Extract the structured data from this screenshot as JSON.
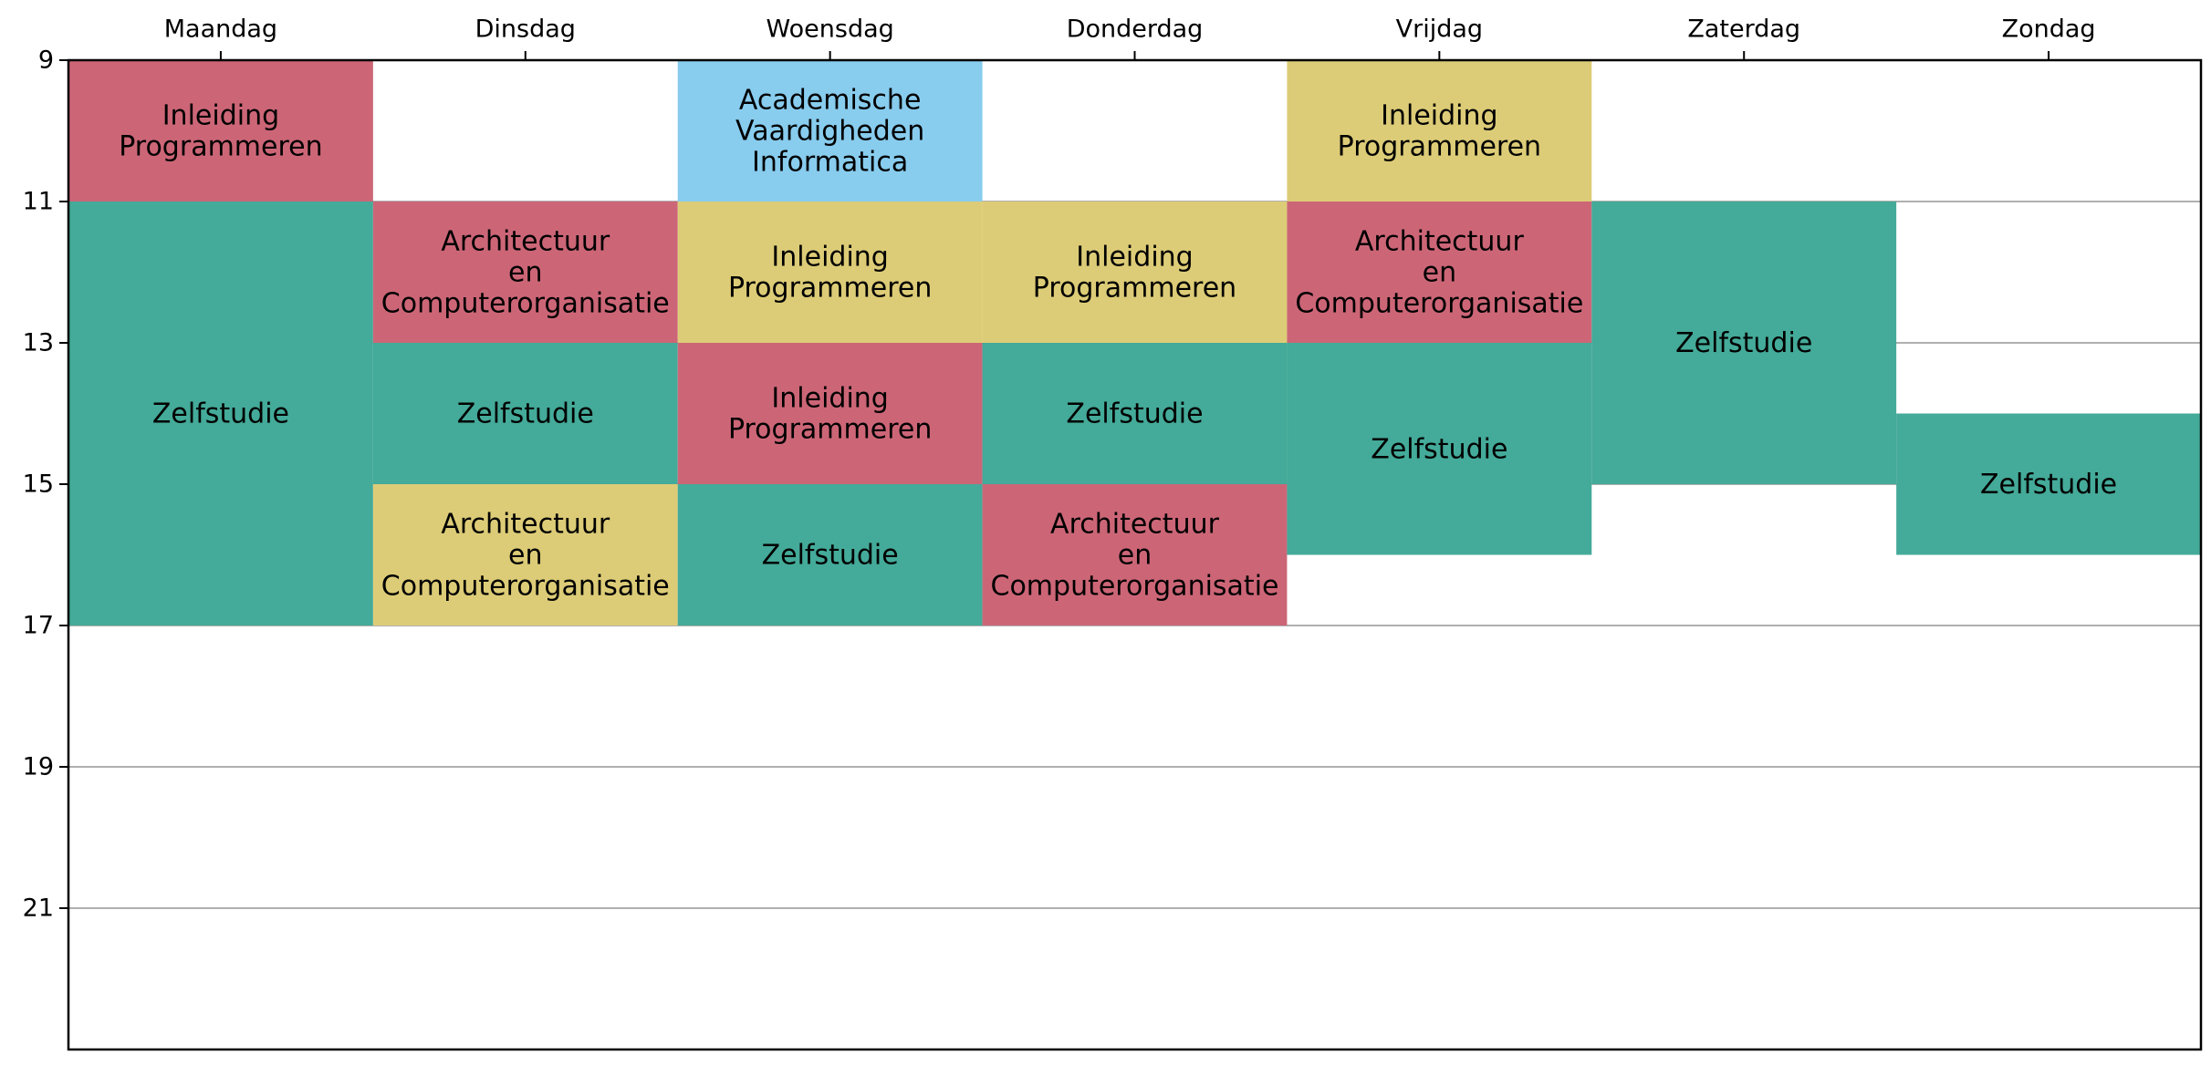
{
  "chart_data": {
    "type": "timetable",
    "days": [
      "Maandag",
      "Dinsdag",
      "Woensdag",
      "Donderdag",
      "Vrijdag",
      "Zaterdag",
      "Zondag"
    ],
    "hour_ticks": [
      9,
      11,
      13,
      15,
      17,
      19,
      21
    ],
    "y_range": [
      9,
      23
    ],
    "grid": true,
    "colors": {
      "red": "#cc6677",
      "teal": "#44aa99",
      "yellow": "#ddcc77",
      "blue": "#88ccee",
      "grid": "#b0b0b0",
      "frame": "#000000"
    },
    "events": [
      {
        "day": 0,
        "start": 9,
        "end": 11,
        "label": [
          "Inleiding",
          "Programmeren"
        ],
        "color": "red"
      },
      {
        "day": 0,
        "start": 11,
        "end": 17,
        "label": [
          "Zelfstudie"
        ],
        "color": "teal"
      },
      {
        "day": 1,
        "start": 11,
        "end": 13,
        "label": [
          "Architectuur",
          "en",
          "Computerorganisatie"
        ],
        "color": "red"
      },
      {
        "day": 1,
        "start": 13,
        "end": 15,
        "label": [
          "Zelfstudie"
        ],
        "color": "teal"
      },
      {
        "day": 1,
        "start": 15,
        "end": 17,
        "label": [
          "Architectuur",
          "en",
          "Computerorganisatie"
        ],
        "color": "yellow"
      },
      {
        "day": 2,
        "start": 9,
        "end": 11,
        "label": [
          "Academische",
          "Vaardigheden",
          "Informatica"
        ],
        "color": "blue"
      },
      {
        "day": 2,
        "start": 11,
        "end": 13,
        "label": [
          "Inleiding",
          "Programmeren"
        ],
        "color": "yellow"
      },
      {
        "day": 2,
        "start": 13,
        "end": 15,
        "label": [
          "Inleiding",
          "Programmeren"
        ],
        "color": "red"
      },
      {
        "day": 2,
        "start": 15,
        "end": 17,
        "label": [
          "Zelfstudie"
        ],
        "color": "teal"
      },
      {
        "day": 3,
        "start": 11,
        "end": 13,
        "label": [
          "Inleiding",
          "Programmeren"
        ],
        "color": "yellow"
      },
      {
        "day": 3,
        "start": 13,
        "end": 15,
        "label": [
          "Zelfstudie"
        ],
        "color": "teal"
      },
      {
        "day": 3,
        "start": 15,
        "end": 17,
        "label": [
          "Architectuur",
          "en",
          "Computerorganisatie"
        ],
        "color": "red"
      },
      {
        "day": 4,
        "start": 9,
        "end": 11,
        "label": [
          "Inleiding",
          "Programmeren"
        ],
        "color": "yellow"
      },
      {
        "day": 4,
        "start": 11,
        "end": 13,
        "label": [
          "Architectuur",
          "en",
          "Computerorganisatie"
        ],
        "color": "red"
      },
      {
        "day": 4,
        "start": 13,
        "end": 16,
        "label": [
          "Zelfstudie"
        ],
        "color": "teal"
      },
      {
        "day": 5,
        "start": 11,
        "end": 15,
        "label": [
          "Zelfstudie"
        ],
        "color": "teal"
      },
      {
        "day": 6,
        "start": 14,
        "end": 16,
        "label": [
          "Zelfstudie"
        ],
        "color": "teal"
      }
    ]
  }
}
